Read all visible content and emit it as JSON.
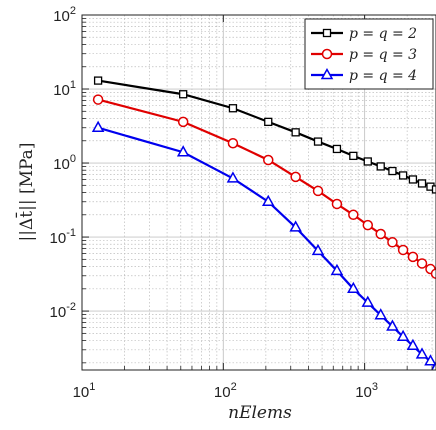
{
  "chart_data": {
    "type": "line",
    "xlabel": "nElems",
    "ylabel": "||Δt̄|| [MPa]",
    "xscale": "log",
    "yscale": "log",
    "xlim": [
      10,
      3200
    ],
    "ylim": [
      0.0016,
      100
    ],
    "x_ticks": [
      10,
      100,
      1000
    ],
    "x_tick_labels": [
      {
        "base": "10",
        "exp": "1"
      },
      {
        "base": "10",
        "exp": "2"
      },
      {
        "base": "10",
        "exp": "3"
      }
    ],
    "y_ticks": [
      0.01,
      0.1,
      1,
      10,
      100
    ],
    "y_tick_labels": [
      {
        "base": "10",
        "exp": "-2"
      },
      {
        "base": "10",
        "exp": "-1"
      },
      {
        "base": "10",
        "exp": "0"
      },
      {
        "base": "10",
        "exp": "1"
      },
      {
        "base": "10",
        "exp": "2"
      }
    ],
    "grid": true,
    "legend_position": "top-right",
    "series": [
      {
        "name": "p = q = 2",
        "color": "#000000",
        "marker": "square",
        "x": [
          13,
          52,
          117,
          208,
          325,
          468,
          637,
          832,
          1053,
          1300,
          1573,
          1872,
          2197,
          2548,
          2925,
          3200
        ],
        "y": [
          13,
          8.5,
          5.5,
          3.6,
          2.6,
          1.95,
          1.55,
          1.25,
          1.05,
          0.9,
          0.78,
          0.68,
          0.6,
          0.53,
          0.48,
          0.44
        ]
      },
      {
        "name": "p = q = 3",
        "color": "#e00000",
        "marker": "circle",
        "x": [
          13,
          52,
          117,
          208,
          325,
          468,
          637,
          832,
          1053,
          1300,
          1573,
          1872,
          2197,
          2548,
          2925,
          3200
        ],
        "y": [
          7.2,
          3.6,
          1.85,
          1.1,
          0.65,
          0.42,
          0.28,
          0.2,
          0.145,
          0.11,
          0.085,
          0.067,
          0.054,
          0.044,
          0.037,
          0.032
        ]
      },
      {
        "name": "p = q = 4",
        "color": "#0000ee",
        "marker": "triangle",
        "x": [
          13,
          52,
          117,
          208,
          325,
          468,
          637,
          832,
          1053,
          1300,
          1573,
          1872,
          2197,
          2548,
          2925,
          3200
        ],
        "y": [
          3.0,
          1.4,
          0.62,
          0.3,
          0.135,
          0.065,
          0.035,
          0.02,
          0.013,
          0.0088,
          0.0062,
          0.0045,
          0.0034,
          0.0026,
          0.0021,
          0.0017
        ]
      }
    ]
  }
}
